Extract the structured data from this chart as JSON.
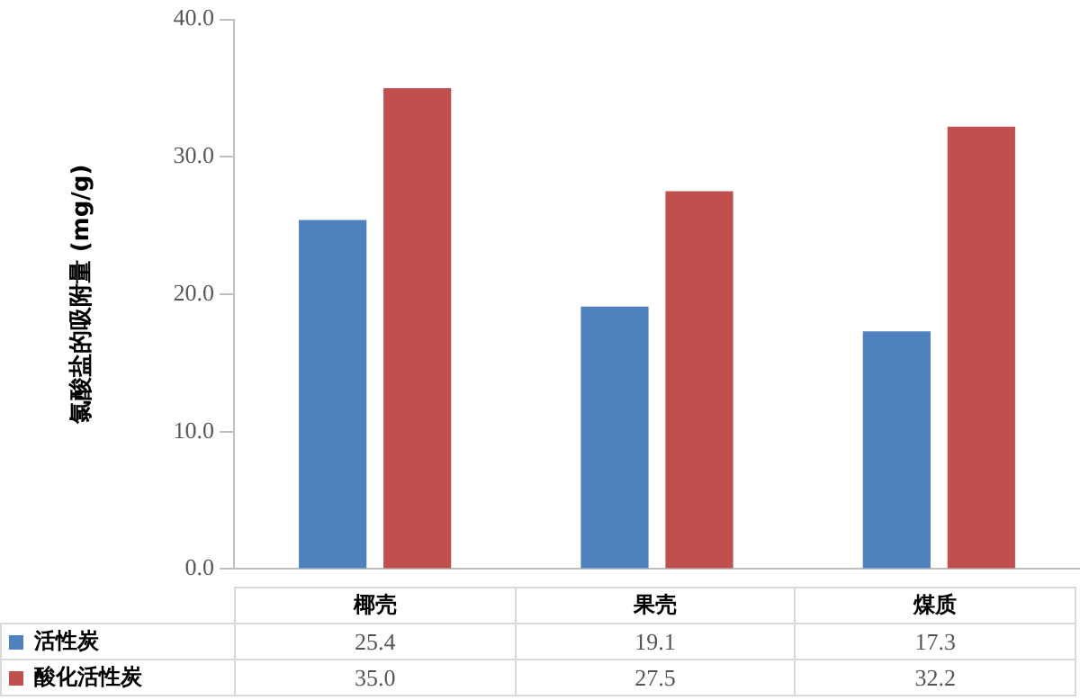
{
  "chart_data": {
    "type": "bar",
    "ylabel": "氯酸盐的吸附量 (mg/g)",
    "categories": [
      "椰壳",
      "果壳",
      "煤质"
    ],
    "series": [
      {
        "name": "活性炭",
        "color": "#4f81bd",
        "values": [
          25.4,
          19.1,
          17.3
        ],
        "value_labels": [
          "25.4",
          "19.1",
          "17.3"
        ]
      },
      {
        "name": "酸化活性炭",
        "color": "#c0504d",
        "values": [
          35.0,
          27.5,
          32.2
        ],
        "value_labels": [
          "35.0",
          "27.5",
          "32.2"
        ]
      }
    ],
    "ylim": [
      0,
      40
    ],
    "yticks": [
      {
        "value": 0,
        "label": "0.0"
      },
      {
        "value": 10,
        "label": "10.0"
      },
      {
        "value": 20,
        "label": "20.0"
      },
      {
        "value": 30,
        "label": "30.0"
      },
      {
        "value": 40,
        "label": "40.0"
      }
    ],
    "grid": false,
    "legend": "bottom"
  }
}
